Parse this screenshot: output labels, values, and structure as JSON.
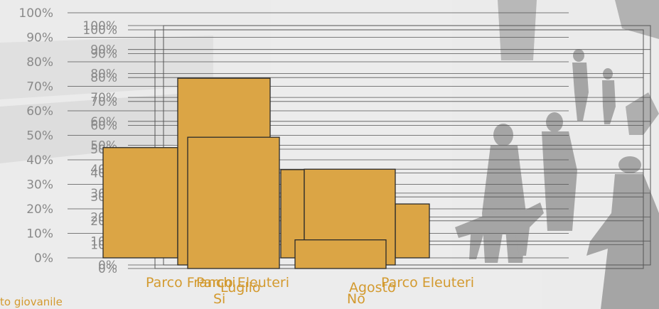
{
  "chart_data": [
    {
      "type": "bar",
      "categories": [
        "Parco Franchi",
        "Parco Eleuteri",
        "Parco Eleuteri"
      ],
      "values": [
        45,
        36,
        22
      ],
      "ylim": [
        0,
        100
      ],
      "y_ticks": [
        "0%",
        "10%",
        "20%",
        "30%",
        "40%",
        "50%",
        "60%",
        "70%",
        "80%",
        "90%",
        "100%"
      ],
      "legend": [
        "to giovanile"
      ],
      "grid": true
    },
    {
      "type": "bar",
      "categories": [
        "Luglio",
        "Agosto"
      ],
      "values": [
        78,
        40
      ],
      "ylim": [
        0,
        100
      ],
      "y_ticks": [
        "0%",
        "10%",
        "20%",
        "30%",
        "40%",
        "50%",
        "60%",
        "70%",
        "80%",
        "90%",
        "100%"
      ],
      "grid": true
    },
    {
      "type": "bar",
      "categories": [
        "Si",
        "No"
      ],
      "values": [
        55,
        12
      ],
      "ylim": [
        0,
        100
      ],
      "y_ticks": [
        "0%",
        "10%",
        "20%",
        "30%",
        "40%",
        "50%",
        "60%",
        "70%",
        "80%",
        "90%",
        "100%"
      ],
      "grid": true
    }
  ],
  "colors": {
    "bar": "#dba545",
    "label": "#d39a2f",
    "tick": "#8a8a8a",
    "background": "#e9e9e9"
  }
}
